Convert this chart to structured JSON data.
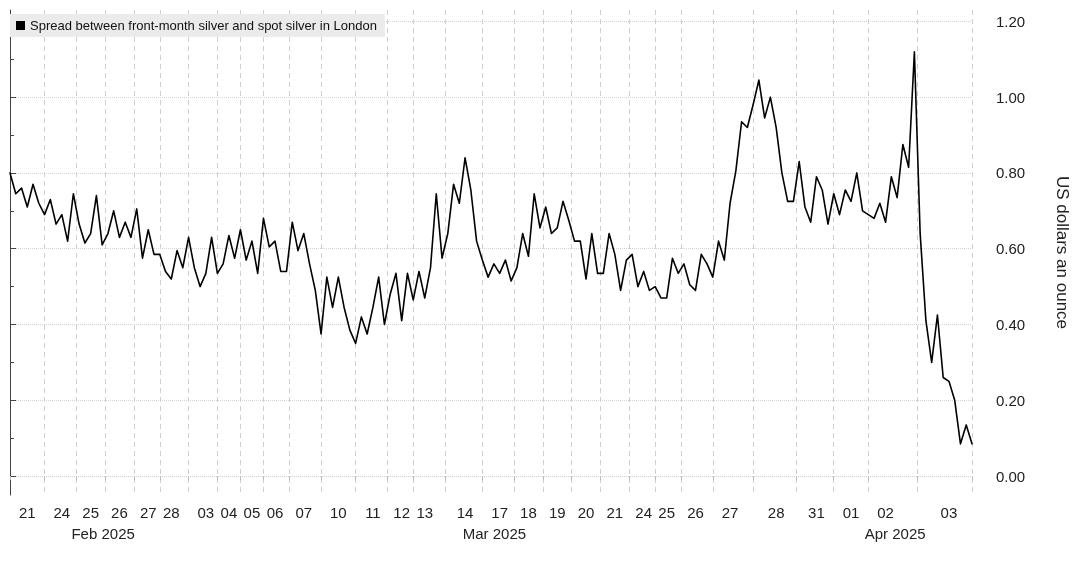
{
  "chart_data": {
    "type": "line",
    "ylabel": "US dollars an ounce",
    "legend": "top left",
    "grid": true,
    "marker": "none",
    "line_style": "solid",
    "ylim": [
      -0.05,
      1.23
    ],
    "annotations": [
      "Feb 2025",
      "Mar 2025",
      "Apr 2025"
    ],
    "categories": [
      null,
      null,
      null,
      "21",
      null,
      null,
      null,
      null,
      null,
      "24",
      null,
      null,
      null,
      null,
      "25",
      null,
      null,
      null,
      null,
      "26",
      null,
      null,
      null,
      null,
      "27",
      null,
      null,
      null,
      "28",
      null,
      null,
      null,
      null,
      null,
      "03",
      null,
      null,
      null,
      "04",
      null,
      null,
      null,
      "05",
      null,
      null,
      null,
      "06",
      null,
      null,
      null,
      null,
      "07",
      null,
      null,
      null,
      null,
      null,
      "10",
      null,
      null,
      null,
      null,
      null,
      "11",
      null,
      null,
      null,
      null,
      "12",
      null,
      null,
      null,
      "13",
      null,
      null,
      null,
      null,
      null,
      null,
      "14",
      null,
      null,
      null,
      null,
      null,
      "17",
      null,
      null,
      null,
      null,
      "18",
      null,
      null,
      null,
      null,
      "19",
      null,
      null,
      null,
      null,
      "20",
      null,
      null,
      null,
      null,
      "21",
      null,
      null,
      null,
      null,
      "24",
      null,
      null,
      null,
      "25",
      null,
      null,
      null,
      null,
      "26",
      null,
      null,
      null,
      null,
      null,
      "27",
      null,
      null,
      null,
      null,
      null,
      null,
      null,
      "28",
      null,
      null,
      null,
      null,
      null,
      null,
      "31",
      null,
      null,
      null,
      null,
      null,
      "01",
      null,
      null,
      null,
      null,
      null,
      "02",
      null,
      null,
      null,
      null,
      null,
      null,
      null,
      null,
      null,
      null,
      "03",
      null,
      null,
      null,
      null
    ],
    "yticks": [
      {
        "value": 0,
        "label": "0.00"
      },
      {
        "value": 0.2,
        "label": "0.20"
      },
      {
        "value": 0.4,
        "label": "0.40"
      },
      {
        "value": 0.6,
        "label": "0.60"
      },
      {
        "value": 0.8,
        "label": "0.80"
      },
      {
        "value": 1,
        "label": "1.00"
      },
      {
        "value": 1.2,
        "label": "1.20"
      },
      {
        "value": 0.1,
        "label": null
      },
      {
        "value": 0.3,
        "label": null
      },
      {
        "value": 0.5,
        "label": null
      },
      {
        "value": 0.7,
        "label": null
      },
      {
        "value": 0.9,
        "label": null
      },
      {
        "value": 1.1,
        "label": null
      }
    ],
    "series": [
      {
        "name": "Spread between front-month silver and spot silver in London",
        "color": "#000000",
        "values": [
          0.8,
          0.745,
          0.76,
          0.71,
          0.77,
          0.72,
          0.69,
          0.73,
          0.665,
          0.69,
          0.62,
          0.745,
          0.665,
          0.615,
          0.64,
          0.74,
          0.61,
          0.64,
          0.7,
          0.63,
          0.67,
          0.63,
          0.705,
          0.575,
          0.65,
          0.585,
          0.585,
          0.54,
          0.52,
          0.595,
          0.55,
          0.63,
          0.55,
          0.5,
          0.535,
          0.63,
          0.535,
          0.56,
          0.635,
          0.575,
          0.65,
          0.57,
          0.62,
          0.535,
          0.68,
          0.605,
          0.62,
          0.54,
          0.54,
          0.67,
          0.595,
          0.64,
          0.56,
          0.49,
          0.375,
          0.525,
          0.445,
          0.525,
          0.445,
          0.385,
          0.35,
          0.42,
          0.375,
          0.445,
          0.525,
          0.4,
          0.48,
          0.535,
          0.41,
          0.535,
          0.465,
          0.54,
          0.47,
          0.55,
          0.745,
          0.575,
          0.64,
          0.77,
          0.72,
          0.84,
          0.755,
          0.62,
          0.57,
          0.525,
          0.56,
          0.535,
          0.57,
          0.515,
          0.55,
          0.64,
          0.58,
          0.745,
          0.655,
          0.71,
          0.64,
          0.655,
          0.725,
          0.675,
          0.62,
          0.62,
          0.52,
          0.64,
          0.535,
          0.535,
          0.64,
          0.585,
          0.49,
          0.57,
          0.585,
          0.5,
          0.54,
          0.49,
          0.5,
          0.47,
          0.47,
          0.575,
          0.535,
          0.56,
          0.505,
          0.49,
          0.585,
          0.56,
          0.525,
          0.62,
          0.57,
          0.72,
          0.805,
          0.935,
          0.92,
          0.98,
          1.045,
          0.945,
          1.0,
          0.92,
          0.8,
          0.725,
          0.725,
          0.83,
          0.71,
          0.67,
          0.79,
          0.755,
          0.665,
          0.745,
          0.69,
          0.755,
          0.725,
          0.8,
          0.7,
          0.69,
          0.68,
          0.72,
          0.67,
          0.79,
          0.735,
          0.875,
          0.815,
          1.12,
          0.64,
          0.41,
          0.3,
          0.425,
          0.26,
          0.25,
          0.2,
          0.085,
          0.135,
          0.085
        ]
      }
    ]
  }
}
